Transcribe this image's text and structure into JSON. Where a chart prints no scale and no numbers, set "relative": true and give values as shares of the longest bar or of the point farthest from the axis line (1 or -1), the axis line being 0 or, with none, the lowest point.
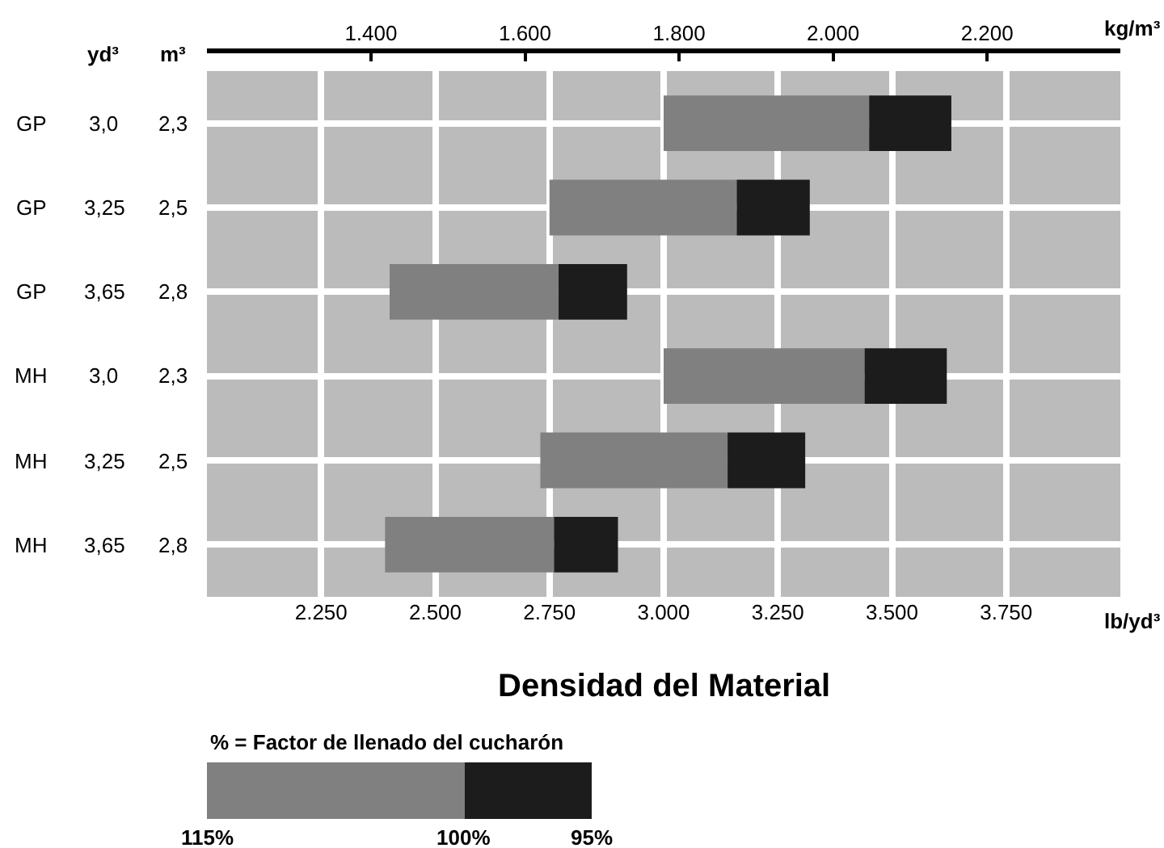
{
  "chart_data": [
    {
      "type": "bar",
      "orientation": "horizontal",
      "title": "Densidad del Material",
      "xlabel": "lb/yd³",
      "x2label": "kg/m³",
      "categories": [
        "GP 3,0 2,3",
        "GP 3,25 2,5",
        "GP 3,65 2,8",
        "MH 3,0 2,3",
        "MH 3,25 2,5",
        "MH 3,65 2,8"
      ],
      "series": [
        {
          "color": "#808080",
          "base": [
            3000,
            2750,
            2400,
            3000,
            2730,
            2390
          ],
          "values": [
            450,
            410,
            370,
            440,
            410,
            370
          ]
        },
        {
          "color": "#1c1c1c",
          "base": [
            3450,
            3160,
            2770,
            3440,
            3140,
            2760
          ],
          "values": [
            180,
            160,
            150,
            180,
            170,
            140
          ]
        }
      ],
      "xlim": [
        2000,
        4000
      ],
      "xticks": [
        {
          "value": 2250,
          "label": "2.250"
        },
        {
          "value": 2500,
          "label": "2.500"
        },
        {
          "value": 2750,
          "label": "2.750"
        },
        {
          "value": 3000,
          "label": "3.000"
        },
        {
          "value": 3250,
          "label": "3.250"
        },
        {
          "value": 3500,
          "label": "3.500"
        },
        {
          "value": 3750,
          "label": "3.750"
        }
      ],
      "x2lim": [
        1187,
        2373
      ],
      "x2ticks": [
        {
          "value": 1400,
          "label": "1.400"
        },
        {
          "value": 1600,
          "label": "1.600"
        },
        {
          "value": 1800,
          "label": "1.800"
        },
        {
          "value": 2000,
          "label": "2.000"
        },
        {
          "value": 2200,
          "label": "2.200"
        }
      ],
      "annotations": [
        "yd³",
        "m³"
      ],
      "grid": true
    },
    {
      "type": "bar",
      "orientation": "horizontal",
      "stacked": true,
      "relative": true,
      "title": "% = Factor de llenado del cucharón",
      "categories": [
        null
      ],
      "series": [
        {
          "color": "#808080",
          "values": [
            0.67
          ]
        },
        {
          "color": "#1c1c1c",
          "values": [
            0.33
          ]
        }
      ],
      "annotations": [
        "115%",
        "100%",
        "95%"
      ]
    }
  ]
}
